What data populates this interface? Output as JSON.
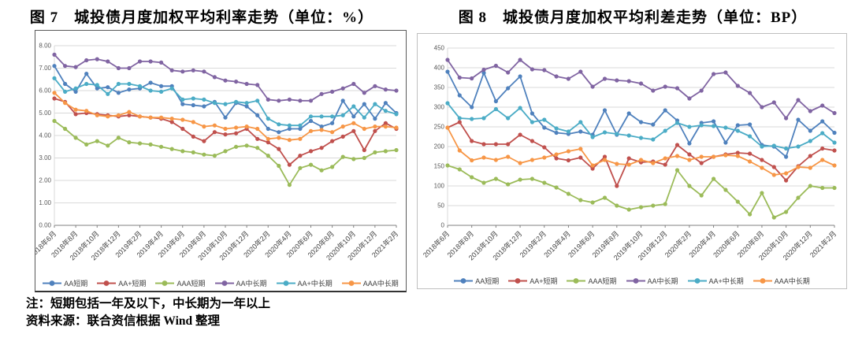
{
  "figures": [
    {
      "title": "图 7　城投债月度加权平均利率走势（单位：%）"
    },
    {
      "title": "图 8　城投债月度加权平均利差走势（单位：BP）"
    }
  ],
  "notes": {
    "line1": "注：短期包括一年及以下，中长期为一年以上",
    "line2": "资料来源：联合资信根据 Wind 整理"
  },
  "chart_data": [
    {
      "type": "line",
      "title": "城投债月度加权平均利率走势",
      "unit": "%",
      "grid": true,
      "legend_position": "bottom",
      "ylim": [
        0,
        8
      ],
      "ytick_values": [
        0,
        1,
        2,
        3,
        4,
        5,
        6,
        7,
        8
      ],
      "ytick_labels": [
        "0.00",
        "1.00",
        "2.00",
        "3.00",
        "4.00",
        "5.00",
        "6.00",
        "7.00",
        "8.00"
      ],
      "x": [
        "2018年6月",
        "2018年7月",
        "2018年8月",
        "2018年9月",
        "2018年10月",
        "2018年11月",
        "2018年12月",
        "2019年1月",
        "2019年2月",
        "2019年3月",
        "2019年4月",
        "2019年5月",
        "2019年6月",
        "2019年7月",
        "2019年8月",
        "2019年9月",
        "2019年10月",
        "2019年11月",
        "2019年12月",
        "2020年1月",
        "2020年2月",
        "2020年3月",
        "2020年4月",
        "2020年5月",
        "2020年6月",
        "2020年7月",
        "2020年8月",
        "2020年9月",
        "2020年10月",
        "2020年11月",
        "2020年12月",
        "2021年1月",
        "2021年2月"
      ],
      "x_tick_indices": [
        0,
        2,
        4,
        6,
        8,
        10,
        12,
        14,
        16,
        18,
        20,
        22,
        24,
        26,
        28,
        30,
        32
      ],
      "series": [
        {
          "name": "AA短期",
          "color": "#4F81BD",
          "values": [
            7.1,
            6.3,
            5.95,
            6.75,
            6.1,
            6.15,
            5.9,
            6.05,
            6.1,
            6.35,
            6.2,
            6.2,
            5.4,
            5.35,
            5.3,
            5.5,
            4.8,
            5.45,
            5.3,
            4.9,
            4.3,
            4.15,
            4.3,
            4.3,
            4.65,
            4.4,
            4.55,
            5.55,
            4.85,
            5.4,
            4.75,
            5.45,
            5.0
          ]
        },
        {
          "name": "AA+短期",
          "color": "#C0504D",
          "values": [
            5.65,
            5.5,
            4.95,
            5.0,
            4.95,
            4.9,
            4.85,
            4.9,
            4.85,
            4.8,
            4.75,
            4.6,
            4.3,
            3.95,
            3.75,
            4.15,
            4.05,
            4.1,
            4.3,
            3.85,
            3.7,
            3.4,
            2.7,
            3.1,
            3.3,
            3.45,
            3.75,
            3.95,
            4.2,
            3.35,
            4.2,
            4.55,
            4.3
          ]
        },
        {
          "name": "AAA短期",
          "color": "#9BBB59",
          "values": [
            4.65,
            4.3,
            3.9,
            3.6,
            3.75,
            3.55,
            3.9,
            3.7,
            3.65,
            3.6,
            3.5,
            3.4,
            3.3,
            3.25,
            3.15,
            3.1,
            3.3,
            3.5,
            3.55,
            3.45,
            3.1,
            2.65,
            1.8,
            2.55,
            2.7,
            2.45,
            2.6,
            3.05,
            2.95,
            3.0,
            3.25,
            3.3,
            3.35
          ]
        },
        {
          "name": "AA中长期",
          "color": "#8064A2",
          "values": [
            7.6,
            7.1,
            7.05,
            7.35,
            7.4,
            7.3,
            7.0,
            7.0,
            7.3,
            7.3,
            7.25,
            6.9,
            6.85,
            6.9,
            6.85,
            6.6,
            6.45,
            6.4,
            6.3,
            6.25,
            5.6,
            5.55,
            5.6,
            5.55,
            5.55,
            5.85,
            5.95,
            6.1,
            6.3,
            5.9,
            6.2,
            6.05,
            6.0
          ]
        },
        {
          "name": "AA+中长期",
          "color": "#4BACC6",
          "values": [
            6.55,
            5.95,
            6.1,
            6.3,
            6.25,
            5.85,
            6.3,
            6.3,
            6.2,
            6.0,
            5.95,
            6.1,
            5.6,
            5.65,
            5.6,
            5.45,
            5.4,
            5.5,
            5.45,
            5.55,
            4.75,
            4.5,
            4.45,
            4.45,
            4.85,
            4.85,
            4.85,
            4.9,
            5.3,
            4.8,
            5.4,
            5.1,
            4.95
          ]
        },
        {
          "name": "AAA中长期",
          "color": "#F79646",
          "values": [
            5.9,
            5.45,
            5.15,
            5.1,
            4.9,
            4.85,
            4.9,
            5.05,
            4.85,
            4.8,
            4.8,
            4.75,
            4.7,
            4.6,
            4.4,
            4.45,
            4.3,
            4.35,
            4.4,
            4.3,
            3.85,
            3.9,
            3.8,
            3.85,
            4.2,
            4.25,
            4.15,
            4.4,
            4.55,
            4.3,
            4.4,
            4.4,
            4.35
          ]
        }
      ]
    },
    {
      "type": "line",
      "title": "城投债月度加权平均利差走势",
      "unit": "BP",
      "grid": true,
      "legend_position": "bottom",
      "ylim": [
        0,
        450
      ],
      "ytick_values": [
        0,
        50,
        100,
        150,
        200,
        250,
        300,
        350,
        400,
        450
      ],
      "ytick_labels": [
        "0",
        "50",
        "100",
        "150",
        "200",
        "250",
        "300",
        "350",
        "400",
        "450"
      ],
      "x": [
        "2018年6月",
        "2018年7月",
        "2018年8月",
        "2018年9月",
        "2018年10月",
        "2018年11月",
        "2018年12月",
        "2019年1月",
        "2019年2月",
        "2019年3月",
        "2019年4月",
        "2019年5月",
        "2019年6月",
        "2019年7月",
        "2019年8月",
        "2019年9月",
        "2019年10月",
        "2019年11月",
        "2019年12月",
        "2020年1月",
        "2020年2月",
        "2020年3月",
        "2020年4月",
        "2020年5月",
        "2020年6月",
        "2020年7月",
        "2020年8月",
        "2020年9月",
        "2020年10月",
        "2020年11月",
        "2020年12月",
        "2021年1月",
        "2021年2月"
      ],
      "x_tick_indices": [
        0,
        2,
        4,
        6,
        8,
        10,
        12,
        14,
        16,
        18,
        20,
        22,
        24,
        26,
        28,
        30,
        32
      ],
      "series": [
        {
          "name": "AA短期",
          "color": "#4F81BD",
          "values": [
            390,
            330,
            300,
            387,
            315,
            348,
            378,
            284,
            248,
            235,
            232,
            238,
            230,
            292,
            230,
            284,
            262,
            256,
            292,
            266,
            208,
            260,
            264,
            210,
            254,
            256,
            204,
            200,
            174,
            268,
            240,
            264,
            235
          ]
        },
        {
          "name": "AA+短期",
          "color": "#C0504D",
          "values": [
            248,
            262,
            214,
            206,
            206,
            206,
            230,
            214,
            198,
            170,
            165,
            172,
            144,
            174,
            100,
            170,
            160,
            162,
            154,
            204,
            180,
            158,
            174,
            180,
            184,
            182,
            166,
            148,
            114,
            150,
            176,
            195,
            190
          ]
        },
        {
          "name": "AAA短期",
          "color": "#9BBB59",
          "values": [
            152,
            142,
            122,
            108,
            118,
            104,
            116,
            118,
            108,
            96,
            80,
            64,
            58,
            70,
            50,
            40,
            46,
            50,
            54,
            140,
            100,
            76,
            118,
            90,
            60,
            28,
            82,
            20,
            34,
            70,
            100,
            95,
            95
          ]
        },
        {
          "name": "AA中长期",
          "color": "#8064A2",
          "values": [
            420,
            375,
            373,
            395,
            405,
            388,
            420,
            396,
            394,
            378,
            372,
            390,
            352,
            372,
            368,
            366,
            360,
            342,
            352,
            348,
            322,
            342,
            384,
            388,
            354,
            336,
            300,
            312,
            272,
            318,
            290,
            304,
            285
          ]
        },
        {
          "name": "AA+中长期",
          "color": "#4BACC6",
          "values": [
            310,
            272,
            270,
            272,
            295,
            272,
            298,
            262,
            268,
            246,
            238,
            262,
            224,
            236,
            232,
            228,
            222,
            218,
            240,
            260,
            250,
            254,
            252,
            248,
            240,
            226,
            200,
            202,
            195,
            200,
            214,
            234,
            210
          ]
        },
        {
          "name": "AAA中长期",
          "color": "#F79646",
          "values": [
            248,
            190,
            165,
            172,
            166,
            174,
            158,
            166,
            172,
            180,
            188,
            194,
            152,
            166,
            156,
            154,
            166,
            158,
            170,
            176,
            166,
            174,
            174,
            178,
            176,
            162,
            146,
            128,
            132,
            148,
            146,
            166,
            152
          ]
        }
      ]
    }
  ]
}
